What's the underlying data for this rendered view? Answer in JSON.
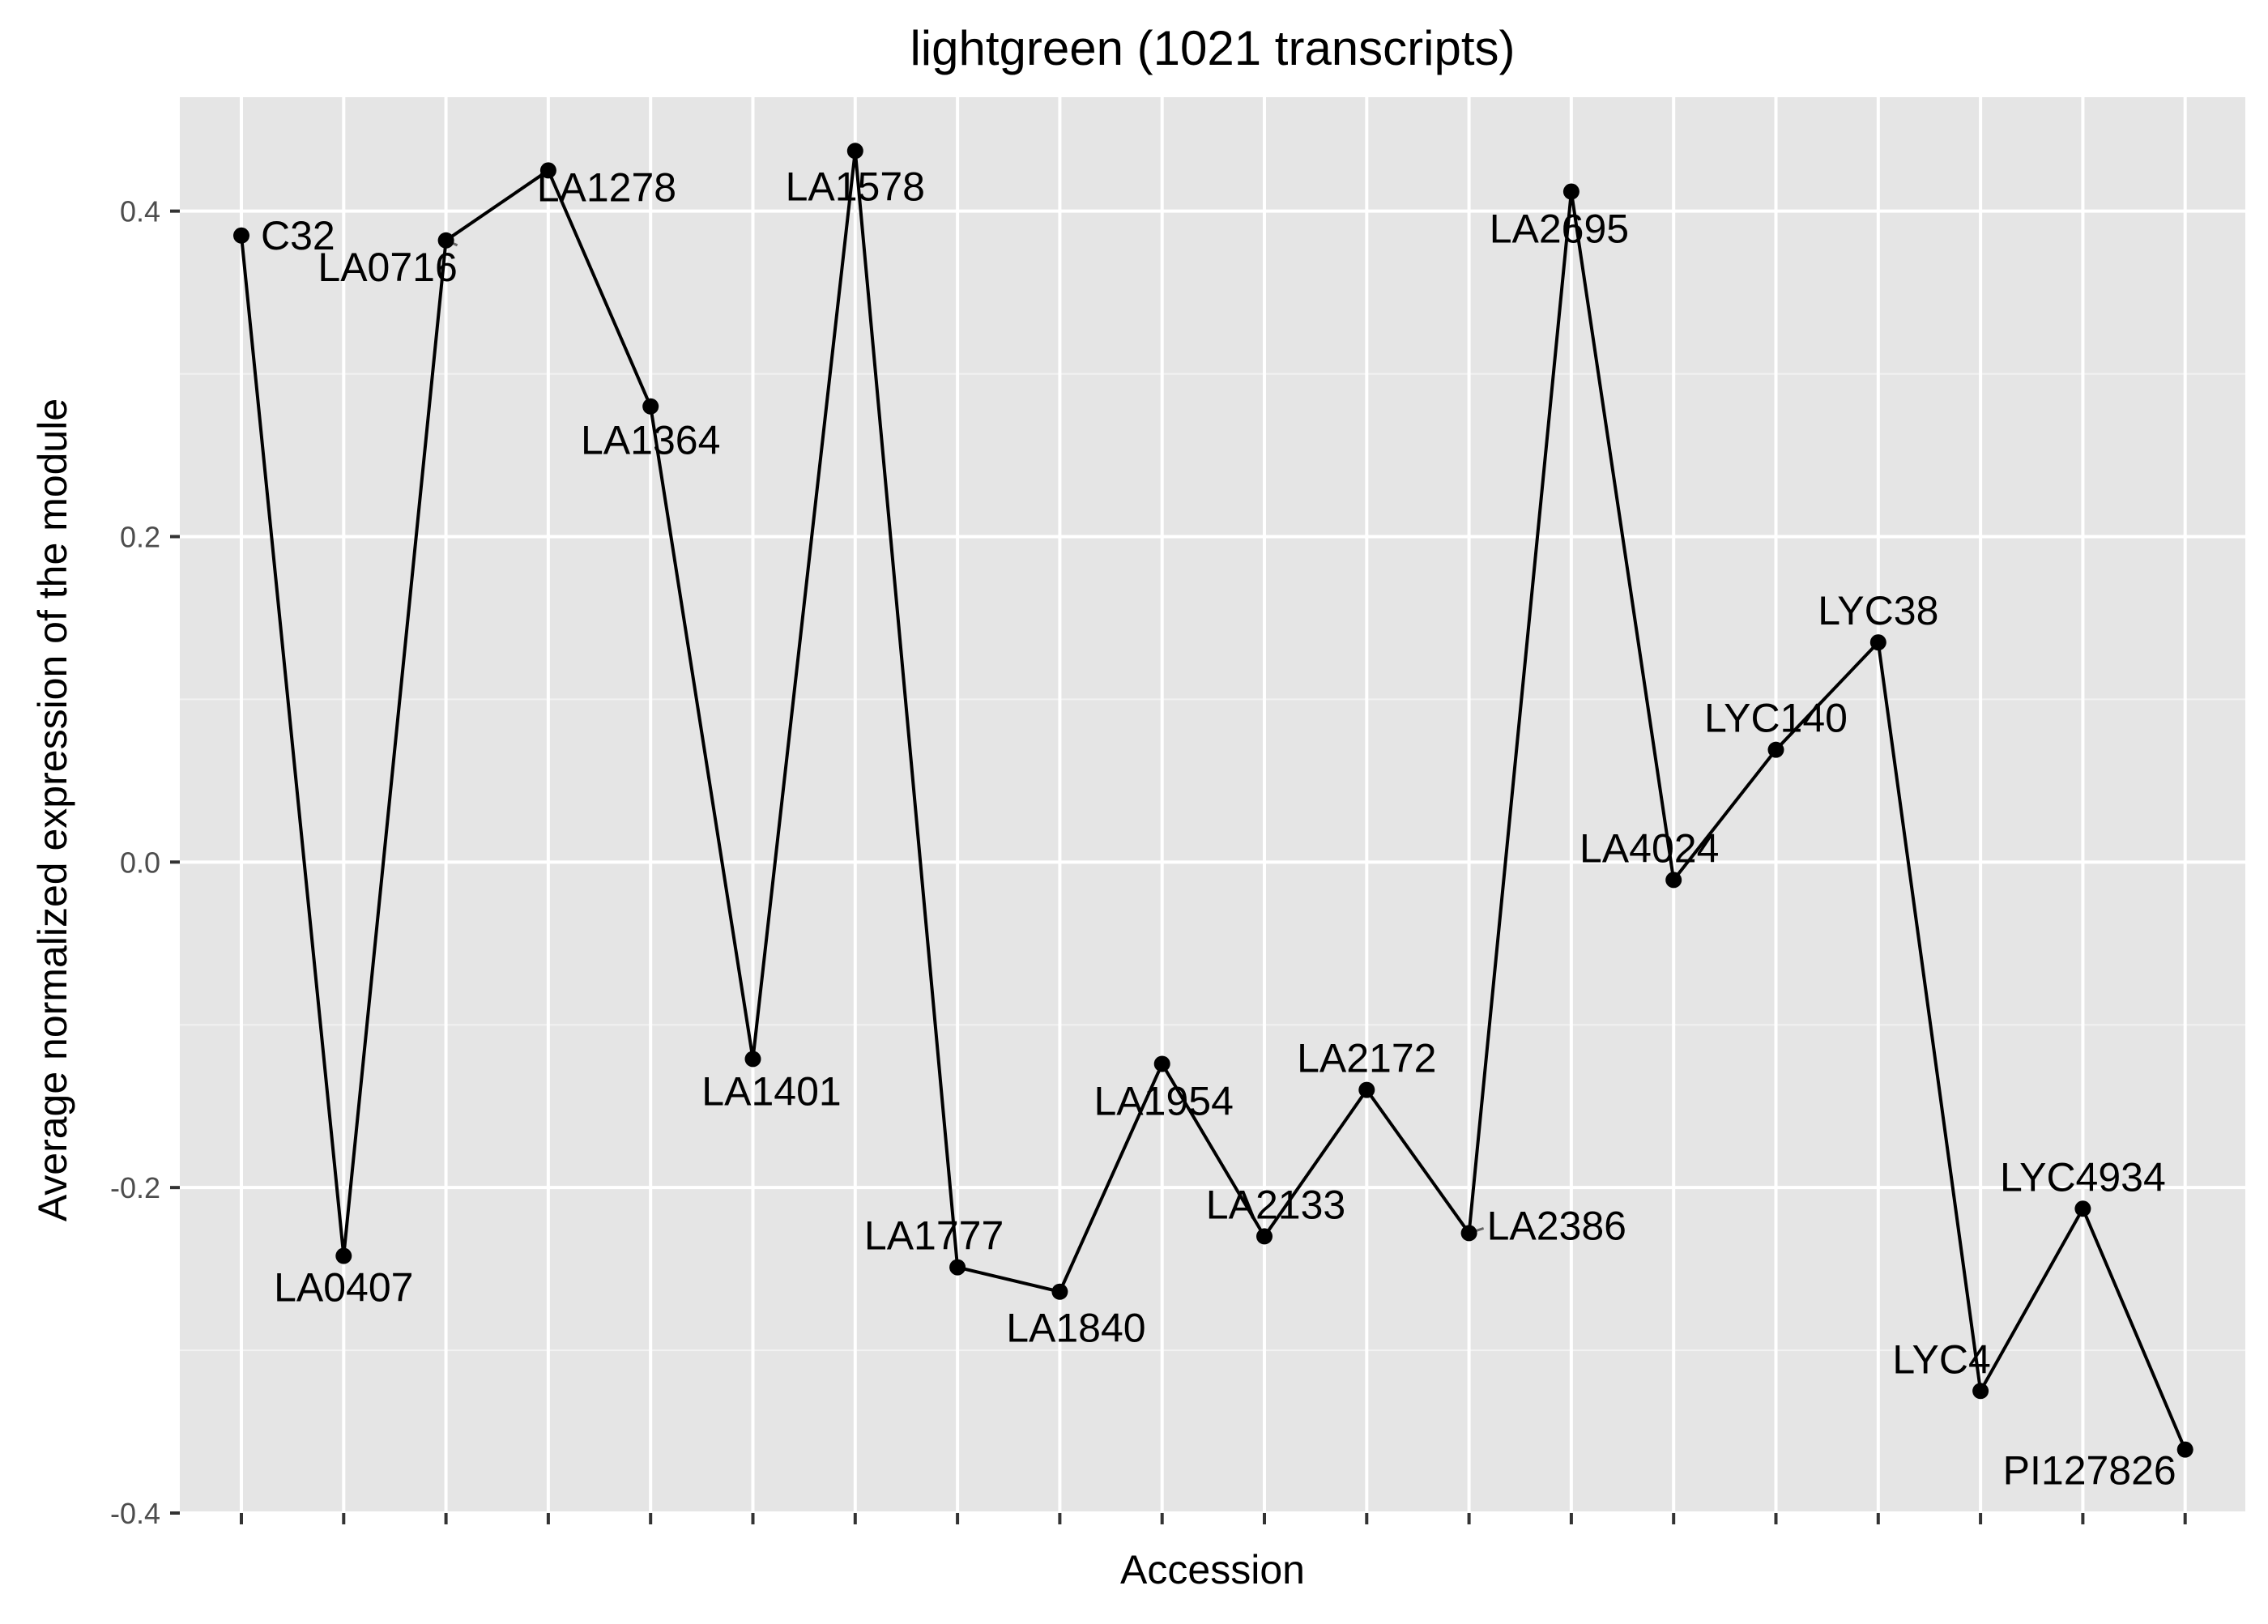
{
  "chart_data": {
    "type": "line",
    "title": "lightgreen (1021 transcripts)",
    "xlabel": "Accession",
    "ylabel": "Average normalized expression of the module",
    "ylim": [
      -0.4,
      0.47
    ],
    "y_ticks": [
      -0.4,
      -0.2,
      0.0,
      0.2,
      0.4
    ],
    "y_tick_labels": [
      "-0.4",
      "-0.2",
      "0.0",
      "0.2",
      "0.4"
    ],
    "grid": true,
    "legend": "none",
    "categories": [
      "C32",
      "LA0407",
      "LA0716",
      "LA1278",
      "LA1364",
      "LA1401",
      "LA1578",
      "LA1777",
      "LA1840",
      "LA1954",
      "LA2133",
      "LA2172",
      "LA2386",
      "LA2695",
      "LA4024",
      "LYC140",
      "LYC38",
      "LYC4",
      "LYC4934",
      "PI127826"
    ],
    "series": [
      {
        "values": [
          0.385,
          -0.242,
          0.382,
          0.425,
          0.28,
          -0.121,
          0.437,
          -0.249,
          -0.264,
          -0.124,
          -0.23,
          -0.14,
          -0.228,
          0.412,
          -0.011,
          0.069,
          0.135,
          -0.325,
          -0.213,
          -0.361
        ]
      }
    ],
    "colors": {
      "panel": "#e5e5e5",
      "grid_major": "#ffffff",
      "grid_minor": "#f2f2f2",
      "line": "#000000",
      "point": "#000000",
      "tick": "#333333"
    }
  }
}
